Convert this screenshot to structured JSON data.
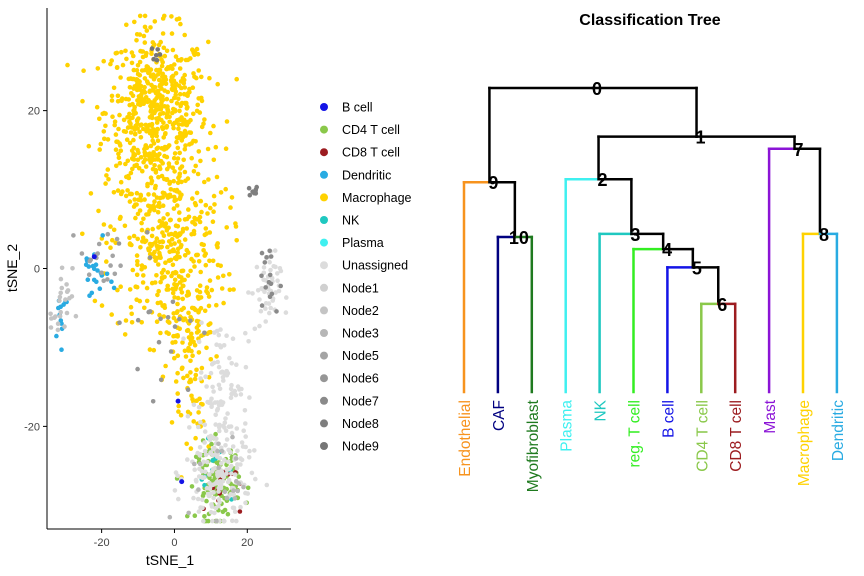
{
  "chart_data": [
    {
      "type": "scatter",
      "xlabel": "tSNE_1",
      "ylabel": "tSNE_2",
      "xlim": [
        -35,
        32
      ],
      "ylim": [
        -33,
        33
      ],
      "x_ticks": [
        -20,
        0,
        20
      ],
      "y_ticks": [
        -20,
        0,
        20
      ],
      "grid": false,
      "legend_position": "right",
      "legend": [
        {
          "label": "B cell",
          "color": "#1414e6"
        },
        {
          "label": "CD4 T cell",
          "color": "#8ac84a"
        },
        {
          "label": "CD8 T cell",
          "color": "#9c1c20"
        },
        {
          "label": "Dendritic",
          "color": "#29abe2"
        },
        {
          "label": "Macrophage",
          "color": "#ffd200"
        },
        {
          "label": "NK",
          "color": "#1fc8c0"
        },
        {
          "label": "Plasma",
          "color": "#3ff0f0"
        },
        {
          "label": "Unassigned",
          "color": "#dcdcdc"
        },
        {
          "label": "Node1",
          "color": "#d0d0d0"
        },
        {
          "label": "Node2",
          "color": "#c4c4c4"
        },
        {
          "label": "Node3",
          "color": "#b6b6b6"
        },
        {
          "label": "Node5",
          "color": "#a4a4a4"
        },
        {
          "label": "Node6",
          "color": "#969696"
        },
        {
          "label": "Node7",
          "color": "#8a8a8a"
        },
        {
          "label": "Node8",
          "color": "#7e7e7e"
        },
        {
          "label": "Node9",
          "color": "#767676"
        }
      ],
      "clusters": [
        {
          "category": "Macrophage",
          "count": 560,
          "cx": -5,
          "cy": 20,
          "sx": 7,
          "sy": 5
        },
        {
          "category": "Macrophage",
          "count": 380,
          "cx": -2,
          "cy": 3,
          "sx": 8,
          "sy": 6
        },
        {
          "category": "Macrophage",
          "count": 90,
          "cx": 3,
          "cy": -8,
          "sx": 4,
          "sy": 3
        },
        {
          "category": "Macrophage",
          "count": 30,
          "cx": 6,
          "cy": -18,
          "sx": 3,
          "sy": 3
        },
        {
          "category": "CD4 T cell",
          "count": 120,
          "cx": 12,
          "cy": -27,
          "sx": 3,
          "sy": 2.5
        },
        {
          "category": "CD8 T cell",
          "count": 14,
          "cx": 13,
          "cy": -28,
          "sx": 2.5,
          "sy": 2
        },
        {
          "category": "NK",
          "count": 10,
          "cx": 12,
          "cy": -26,
          "sx": 2.5,
          "sy": 2
        },
        {
          "category": "Dendritic",
          "count": 22,
          "cx": -22,
          "cy": -1,
          "sx": 2,
          "sy": 2
        },
        {
          "category": "Dendritic",
          "count": 12,
          "cx": -31,
          "cy": -6,
          "sx": 1.2,
          "sy": 1.8
        },
        {
          "category": "Unassigned",
          "count": 170,
          "cx": 12,
          "cy": -26,
          "sx": 4.5,
          "sy": 3.5
        },
        {
          "category": "Unassigned",
          "count": 80,
          "cx": 13,
          "cy": -14,
          "sx": 3.5,
          "sy": 4
        },
        {
          "category": "Unassigned",
          "count": 50,
          "cx": 25,
          "cy": -3,
          "sx": 2,
          "sy": 2.5
        },
        {
          "category": "Node2",
          "count": 25,
          "cx": -31,
          "cy": -5,
          "sx": 1.5,
          "sy": 2.5
        },
        {
          "category": "Node5",
          "count": 18,
          "cx": -20,
          "cy": 1,
          "sx": 3,
          "sy": 2
        },
        {
          "category": "Node7",
          "count": 15,
          "cx": 25,
          "cy": -2,
          "sx": 2,
          "sy": 2.5
        },
        {
          "category": "Node8",
          "count": 8,
          "cx": 22,
          "cy": 10,
          "sx": 0.8,
          "sy": 0.5
        },
        {
          "category": "Node9",
          "count": 6,
          "cx": -5,
          "cy": 27,
          "sx": 1.5,
          "sy": 1
        },
        {
          "category": "Node6",
          "count": 20,
          "cx": -3,
          "cy": -6,
          "sx": 5,
          "sy": 5
        },
        {
          "category": "Node3",
          "count": 20,
          "cx": 12,
          "cy": -27,
          "sx": 4,
          "sy": 3
        }
      ],
      "single_points": [
        {
          "category": "B cell",
          "x": -22,
          "y": 1.5
        },
        {
          "category": "B cell",
          "x": 1,
          "y": -16.8
        },
        {
          "category": "B cell",
          "x": 2,
          "y": -27
        }
      ]
    },
    {
      "type": "dendrogram",
      "title": "Classification Tree",
      "leaves": [
        {
          "label": "Endothelial",
          "color": "#f7931e"
        },
        {
          "label": "CAF",
          "color": "#000080"
        },
        {
          "label": "Myofibroblast",
          "color": "#1f7a1f"
        },
        {
          "label": "Plasma",
          "color": "#3ff0f0"
        },
        {
          "label": "NK",
          "color": "#1fc8c0"
        },
        {
          "label": "reg. T cell",
          "color": "#33ee22"
        },
        {
          "label": "B cell",
          "color": "#1414e6"
        },
        {
          "label": "CD4 T cell",
          "color": "#8ac84a"
        },
        {
          "label": "CD8 T cell",
          "color": "#9c1c20"
        },
        {
          "label": "Mast",
          "color": "#8b14d6"
        },
        {
          "label": "Macrophage",
          "color": "#ffd200"
        },
        {
          "label": "Dendritic",
          "color": "#29abe2"
        }
      ],
      "nodes": [
        {
          "id": "0",
          "height": 10,
          "children": [
            "9",
            "1"
          ]
        },
        {
          "id": "1",
          "height": 8.4,
          "children": [
            "2",
            "7"
          ]
        },
        {
          "id": "9",
          "height": 6.9,
          "children": [
            "Endothelial",
            "10"
          ]
        },
        {
          "id": "10",
          "height": 5.1,
          "children": [
            "CAF",
            "Myofibroblast"
          ]
        },
        {
          "id": "2",
          "height": 7.0,
          "children": [
            "Plasma",
            "3"
          ]
        },
        {
          "id": "3",
          "height": 5.2,
          "children": [
            "NK",
            "4"
          ]
        },
        {
          "id": "4",
          "height": 4.7,
          "children": [
            "reg. T cell",
            "5"
          ]
        },
        {
          "id": "5",
          "height": 4.1,
          "children": [
            "B cell",
            "6"
          ]
        },
        {
          "id": "6",
          "height": 2.9,
          "children": [
            "CD4 T cell",
            "CD8 T cell"
          ]
        },
        {
          "id": "7",
          "height": 8.0,
          "children": [
            "Mast",
            "8"
          ]
        },
        {
          "id": "8",
          "height": 5.2,
          "children": [
            "Macrophage",
            "Dendritic"
          ]
        }
      ]
    }
  ]
}
